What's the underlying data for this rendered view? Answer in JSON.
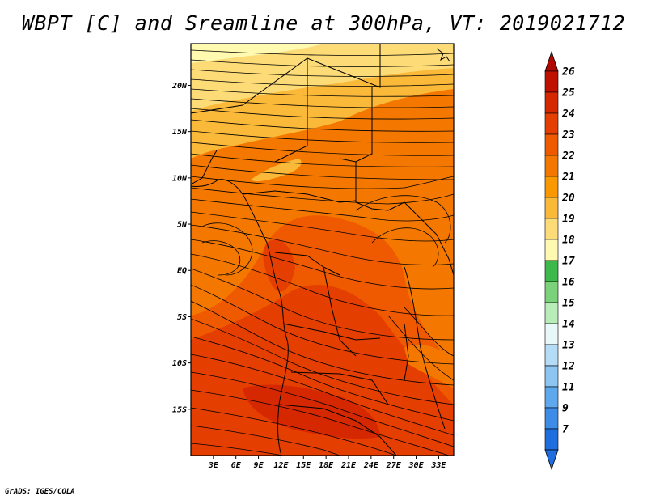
{
  "title": "WBPT [C] and Sreamline at 300hPa, VT: 2019021712",
  "credit": "GrADS: IGES/COLA",
  "map": {
    "lat_range": [
      -20,
      24.5
    ],
    "lon_range": [
      0,
      35
    ],
    "lat_ticks": [
      {
        "value": 20,
        "label": "20N"
      },
      {
        "value": 15,
        "label": "15N"
      },
      {
        "value": 10,
        "label": "10N"
      },
      {
        "value": 5,
        "label": "5N"
      },
      {
        "value": 0,
        "label": "EQ"
      },
      {
        "value": -5,
        "label": "5S"
      },
      {
        "value": -10,
        "label": "10S"
      },
      {
        "value": -15,
        "label": "15S"
      }
    ],
    "lon_ticks": [
      {
        "value": 3,
        "label": "3E"
      },
      {
        "value": 6,
        "label": "6E"
      },
      {
        "value": 9,
        "label": "9E"
      },
      {
        "value": 12,
        "label": "12E"
      },
      {
        "value": 15,
        "label": "15E"
      },
      {
        "value": 18,
        "label": "18E"
      },
      {
        "value": 21,
        "label": "21E"
      },
      {
        "value": 24,
        "label": "24E"
      },
      {
        "value": 27,
        "label": "27E"
      },
      {
        "value": 30,
        "label": "30E"
      },
      {
        "value": 33,
        "label": "33E"
      }
    ]
  },
  "colorbar": {
    "levels": [
      {
        "label": "26",
        "color": "#c01000"
      },
      {
        "label": "25",
        "color": "#d62800"
      },
      {
        "label": "24",
        "color": "#e43e00"
      },
      {
        "label": "23",
        "color": "#ef5a00"
      },
      {
        "label": "22",
        "color": "#f47800"
      },
      {
        "label": "21",
        "color": "#f99800"
      },
      {
        "label": "20",
        "color": "#fbb93a"
      },
      {
        "label": "19",
        "color": "#fddc78"
      },
      {
        "label": "18",
        "color": "#fffab0"
      },
      {
        "label": "17",
        "color": "#3db84a"
      },
      {
        "label": "16",
        "color": "#7ad37a"
      },
      {
        "label": "15",
        "color": "#b8ecb8"
      },
      {
        "label": "14",
        "color": "#e8f8f8"
      },
      {
        "label": "13",
        "color": "#b4dcf6"
      },
      {
        "label": "12",
        "color": "#8cc4f2"
      },
      {
        "label": "11",
        "color": "#5ea8ee"
      },
      {
        "label": "9",
        "color": "#3c8ce8"
      },
      {
        "label": "7",
        "color": "#1e6ee0"
      }
    ],
    "bottom_color": "#1e6ee0",
    "top_color": "#b00800"
  }
}
